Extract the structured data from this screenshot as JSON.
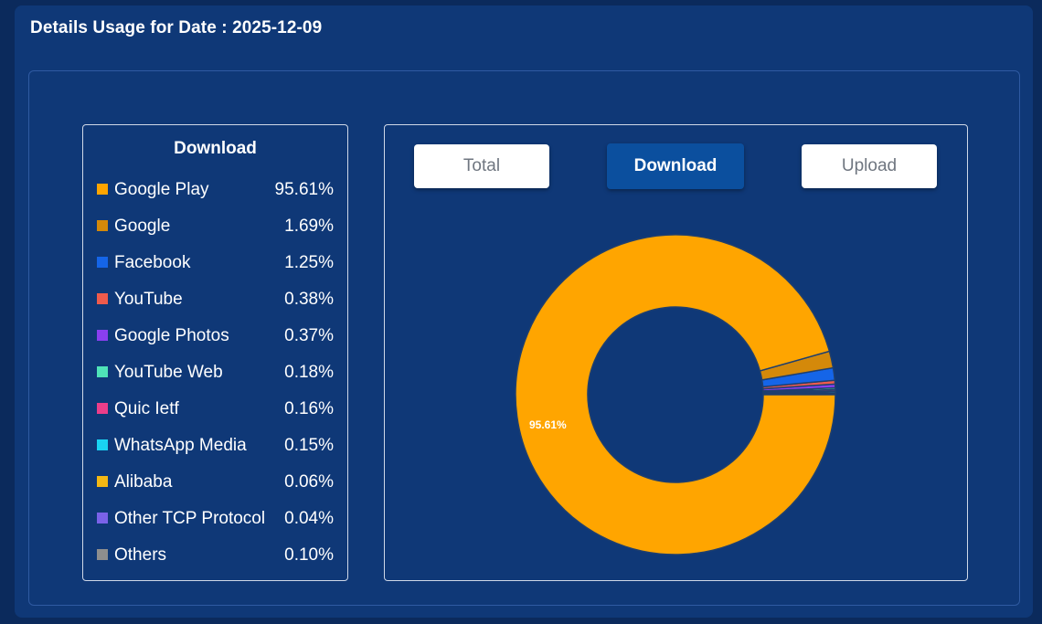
{
  "page": {
    "title": "Details Usage for Date : 2025-12-09"
  },
  "legend": {
    "title": "Download",
    "items": [
      {
        "name": "Google Play",
        "value": "95.61%",
        "color": "#FFA500"
      },
      {
        "name": "Google",
        "value": "1.69%",
        "color": "#D4890A"
      },
      {
        "name": "Facebook",
        "value": "1.25%",
        "color": "#1565E8"
      },
      {
        "name": "YouTube",
        "value": "0.38%",
        "color": "#EF5B4C"
      },
      {
        "name": "Google Photos",
        "value": "0.37%",
        "color": "#8A3FF0"
      },
      {
        "name": "YouTube Web",
        "value": "0.18%",
        "color": "#4FE3B8"
      },
      {
        "name": "Quic Ietf",
        "value": "0.16%",
        "color": "#EC3E8A"
      },
      {
        "name": "WhatsApp Media",
        "value": "0.15%",
        "color": "#19D3F2"
      },
      {
        "name": "Alibaba",
        "value": "0.06%",
        "color": "#F4B814"
      },
      {
        "name": "Other TCP Protocol",
        "value": "0.04%",
        "color": "#7A62E8"
      },
      {
        "name": "Others",
        "value": "0.10%",
        "color": "#8E8E8E"
      }
    ]
  },
  "tabs": {
    "total_label": "Total",
    "download_label": "Download",
    "upload_label": "Upload",
    "active": "Download"
  },
  "chart_data": {
    "type": "pie",
    "donut": true,
    "labels": [
      "Google Play",
      "Google",
      "Facebook",
      "YouTube",
      "Google Photos",
      "YouTube Web",
      "Quic Ietf",
      "WhatsApp Media",
      "Alibaba",
      "Other TCP Protocol",
      "Others"
    ],
    "values": [
      95.61,
      1.69,
      1.25,
      0.38,
      0.37,
      0.18,
      0.16,
      0.15,
      0.06,
      0.04,
      0.1
    ],
    "colors": [
      "#FFA500",
      "#D4890A",
      "#1565E8",
      "#EF5B4C",
      "#8A3FF0",
      "#4FE3B8",
      "#EC3E8A",
      "#19D3F2",
      "#F4B814",
      "#7A62E8",
      "#8E8E8E"
    ],
    "data_labels": [
      "95.61%"
    ],
    "segment_border_color": "#1f3f6e"
  }
}
